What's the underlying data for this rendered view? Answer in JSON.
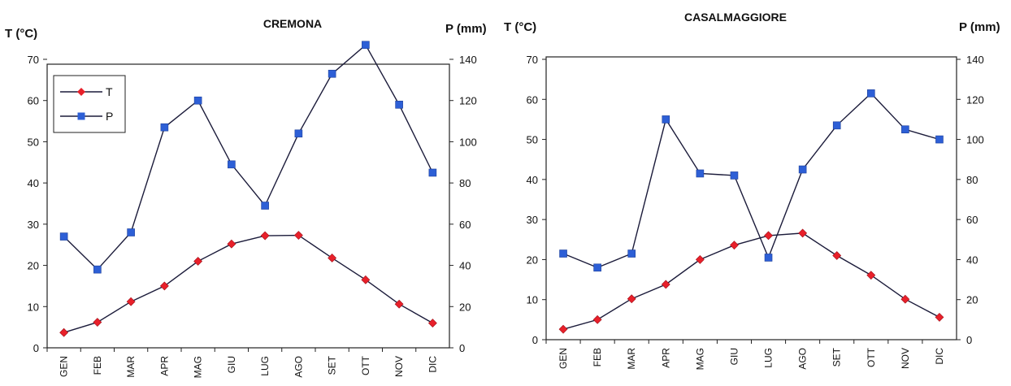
{
  "chart_data": [
    {
      "type": "line",
      "title": "CREMONA",
      "ylabel_left": "T (°C)",
      "ylabel_right": "P (mm)",
      "categories": [
        "GEN",
        "FEB",
        "MAR",
        "APR",
        "MAG",
        "GIU",
        "LUG",
        "AGO",
        "SET",
        "OTT",
        "NOV",
        "DIC"
      ],
      "ylim_left": [
        0,
        75
      ],
      "ylim_right": [
        0,
        150
      ],
      "yticks_left": [
        "0",
        "10",
        "20",
        "30",
        "40",
        "50",
        "60",
        "70"
      ],
      "yticks_right": [
        "0",
        "20",
        "40",
        "60",
        "80",
        "100",
        "120",
        "140"
      ],
      "legend": "top-left",
      "series": [
        {
          "name": "T",
          "axis": "left",
          "color": "#e8202a",
          "marker": "diamond",
          "values": [
            3.7,
            6.2,
            11.2,
            15.0,
            21.0,
            25.2,
            27.2,
            27.3,
            21.8,
            16.5,
            10.6,
            6.0
          ]
        },
        {
          "name": "P",
          "axis": "right",
          "color": "#2d5fd6",
          "marker": "square",
          "values": [
            54,
            38,
            56,
            107,
            120,
            89,
            69,
            104,
            133,
            147,
            118,
            85
          ]
        }
      ]
    },
    {
      "type": "line",
      "title": "CASALMAGGIORE",
      "ylabel_left": "T (°C)",
      "ylabel_right": "P (mm)",
      "categories": [
        "GEN",
        "FEB",
        "MAR",
        "APR",
        "MAG",
        "GIU",
        "LUG",
        "AGO",
        "SET",
        "OTT",
        "NOV",
        "DIC"
      ],
      "ylim_left": [
        0,
        75
      ],
      "ylim_right": [
        0,
        150
      ],
      "yticks_left": [
        "0",
        "10",
        "20",
        "30",
        "40",
        "50",
        "60",
        "70"
      ],
      "yticks_right": [
        "0",
        "20",
        "40",
        "60",
        "80",
        "100",
        "120",
        "140"
      ],
      "legend": "none",
      "series": [
        {
          "name": "T",
          "axis": "left",
          "color": "#e8202a",
          "marker": "diamond",
          "values": [
            2.6,
            5.0,
            10.2,
            13.8,
            20.0,
            23.6,
            26.0,
            26.6,
            21.0,
            16.1,
            10.1,
            5.6
          ]
        },
        {
          "name": "P",
          "axis": "right",
          "color": "#2d5fd6",
          "marker": "square",
          "values": [
            43,
            36,
            43,
            110,
            83,
            82,
            41,
            85,
            107,
            123,
            105,
            100
          ]
        }
      ]
    }
  ]
}
